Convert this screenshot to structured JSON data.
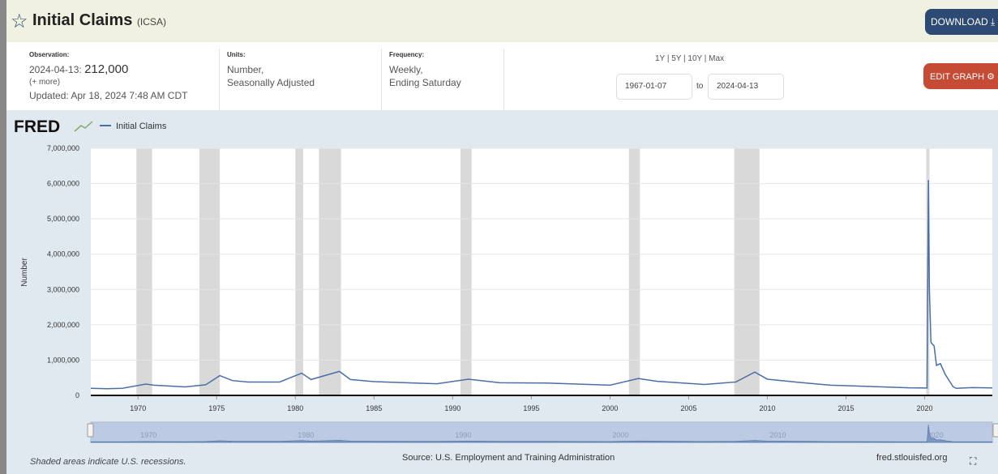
{
  "header": {
    "title": "Initial Claims",
    "series_id": "(ICSA)",
    "download_label": "DOWNLOAD",
    "edit_label": "EDIT GRAPH"
  },
  "info": {
    "observation_label": "Observation:",
    "observation_date": "2024-04-13:",
    "observation_value": "212,000",
    "more": "(+ more)",
    "updated": "Updated: Apr 18, 2024 7:48 AM CDT",
    "units_label": "Units:",
    "units_1": "Number,",
    "units_2": "Seasonally Adjusted",
    "frequency_label": "Frequency:",
    "frequency_1": "Weekly,",
    "frequency_2": "Ending Saturday",
    "ranges": "1Y | 5Y | 10Y | Max",
    "start_date": "1967-01-07",
    "to": "to",
    "end_date": "2024-04-13"
  },
  "footer": {
    "recession_note": "Shaded areas indicate U.S. recessions.",
    "source": "Source: U.S. Employment and Training Administration",
    "url": "fred.stlouisfed.org"
  },
  "colors": {
    "line": "#4a6fa5",
    "recession": "#d9d9d9",
    "download": "#2c4a73",
    "edit": "#c64b35"
  },
  "chart_data": {
    "type": "line",
    "title": "",
    "logo": "FRED",
    "legend": [
      "Initial Claims"
    ],
    "legend_placement": "top-left",
    "ylabel": "Number",
    "xlabel": "",
    "ylim": [
      0,
      7000000
    ],
    "xlim": [
      1967.0,
      2024.3
    ],
    "yticks": [
      0,
      1000000,
      2000000,
      3000000,
      4000000,
      5000000,
      6000000,
      7000000
    ],
    "ytick_labels": [
      "0",
      "1,000,000",
      "2,000,000",
      "3,000,000",
      "4,000,000",
      "5,000,000",
      "6,000,000",
      "7,000,000"
    ],
    "xticks": [
      1970,
      1975,
      1980,
      1985,
      1990,
      1995,
      2000,
      2005,
      2010,
      2015,
      2020
    ],
    "navigator_ticks": [
      1970,
      1980,
      1990,
      2000,
      2010,
      2020
    ],
    "recessions": [
      [
        1969.9,
        1970.9
      ],
      [
        1973.9,
        1975.2
      ],
      [
        1980.0,
        1980.5
      ],
      [
        1981.5,
        1982.9
      ],
      [
        1990.5,
        1991.2
      ],
      [
        2001.2,
        2001.9
      ],
      [
        2007.9,
        2009.5
      ],
      [
        2020.1,
        2020.3
      ]
    ],
    "series": [
      {
        "name": "Initial Claims",
        "x": [
          1967,
          1968,
          1969,
          1970.5,
          1971,
          1973,
          1974.3,
          1975.2,
          1976,
          1977,
          1979,
          1980.4,
          1981,
          1982.8,
          1983.5,
          1985,
          1989,
          1991,
          1993,
          1996,
          2000,
          2001.8,
          2003,
          2006,
          2008,
          2009.2,
          2010,
          2012,
          2014,
          2016,
          2019,
          2020.15,
          2020.24,
          2020.3,
          2020.4,
          2020.6,
          2020.75,
          2021,
          2021.3,
          2021.8,
          2022,
          2023,
          2024.3
        ],
        "y": [
          200000,
          190000,
          200000,
          320000,
          290000,
          240000,
          300000,
          560000,
          420000,
          380000,
          380000,
          630000,
          450000,
          680000,
          450000,
          390000,
          330000,
          460000,
          360000,
          350000,
          290000,
          480000,
          400000,
          310000,
          380000,
          660000,
          460000,
          370000,
          290000,
          260000,
          215000,
          210000,
          6100000,
          3000000,
          1500000,
          1400000,
          850000,
          900000,
          600000,
          250000,
          200000,
          220000,
          212000
        ]
      }
    ]
  }
}
